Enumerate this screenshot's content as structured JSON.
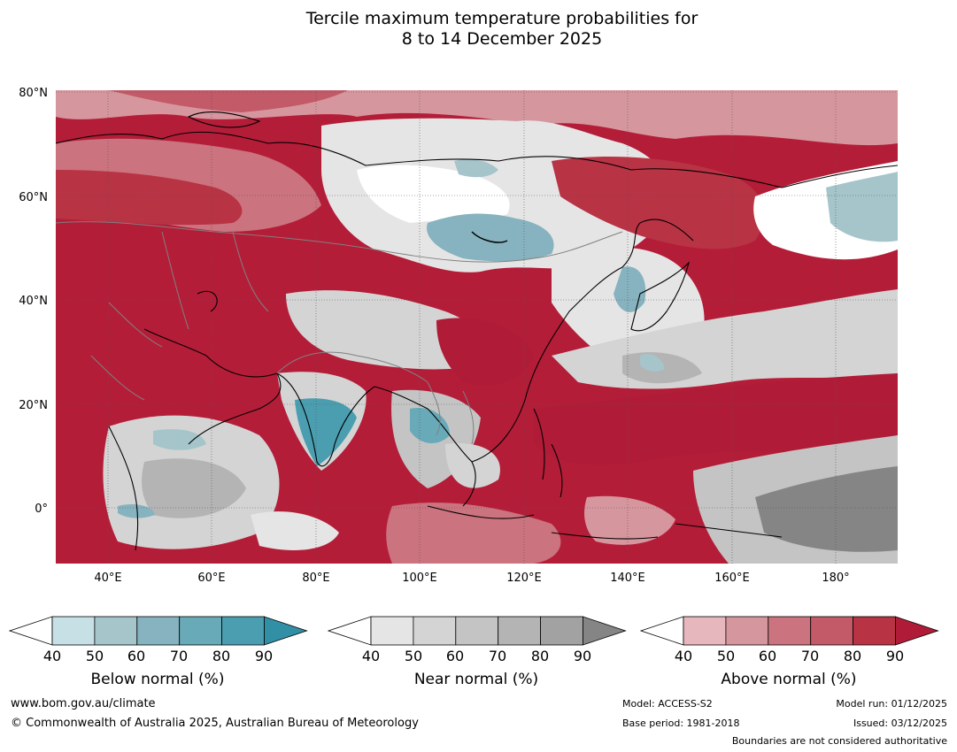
{
  "title": {
    "line1": "Tercile maximum temperature probabilities for",
    "line2": "8 to 14 December 2025"
  },
  "map": {
    "lat_labels": [
      "80°N",
      "60°N",
      "40°N",
      "20°N",
      "0°"
    ],
    "lon_labels": [
      "40°E",
      "60°E",
      "80°E",
      "100°E",
      "120°E",
      "140°E",
      "160°E",
      "180°"
    ],
    "extent": {
      "lon_min": 30,
      "lon_max": 192,
      "lat_min": -10,
      "lat_max": 81
    }
  },
  "colorbars": [
    {
      "label": "Below normal (%)",
      "ticks": [
        "40",
        "50",
        "60",
        "70",
        "80",
        "90"
      ],
      "colors": [
        "#ffffff",
        "#c6e0e6",
        "#a5c5cb",
        "#86b3bf",
        "#69aab9",
        "#4a9eb0",
        "#3190a5"
      ]
    },
    {
      "label": "Near normal (%)",
      "ticks": [
        "40",
        "50",
        "60",
        "70",
        "80",
        "90"
      ],
      "colors": [
        "#ffffff",
        "#e5e5e5",
        "#d4d4d4",
        "#c4c4c4",
        "#b4b4b4",
        "#a2a2a2",
        "#858585"
      ]
    },
    {
      "label": "Above normal (%)",
      "ticks": [
        "40",
        "50",
        "60",
        "70",
        "80",
        "90"
      ],
      "colors": [
        "#ffffff",
        "#e6b8be",
        "#d6969e",
        "#cb737e",
        "#c25a68",
        "#b83344",
        "#b01c37"
      ]
    }
  ],
  "footer": {
    "website": "www.bom.gov.au/climate",
    "copyright": "© Commonwealth of Australia 2025, Australian Bureau of Meteorology",
    "model": "Model: ACCESS-S2",
    "base_period": "Base period: 1981-2018",
    "model_run": "Model run: 01/12/2025",
    "issued": "Issued: 03/12/2025",
    "disclaimer": "Boundaries are not considered authoritative"
  }
}
